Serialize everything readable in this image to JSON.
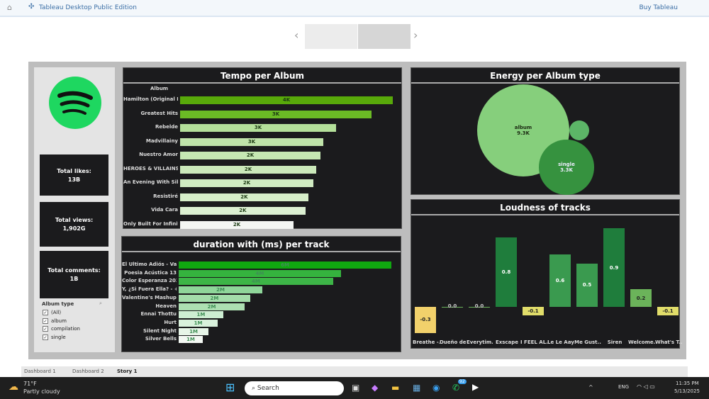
{
  "window": {
    "title": "Tableau Desktop Public Edition",
    "buy": "Buy Tableau"
  },
  "kpis": [
    {
      "label": "Total likes:",
      "value": "13B"
    },
    {
      "label": "Total views:",
      "value": "1,902G"
    },
    {
      "label": "Total comments:",
      "value": "1B"
    }
  ],
  "filter": {
    "title": "Album type",
    "options": [
      {
        "label": "(All)",
        "checked": true
      },
      {
        "label": "album",
        "checked": true
      },
      {
        "label": "compilation",
        "checked": true
      },
      {
        "label": "single",
        "checked": true
      }
    ]
  },
  "tabs": [
    "Dashboard 1",
    "Dashboard 2",
    "Story 1"
  ],
  "taskbar": {
    "weather_temp": "71°F",
    "weather_desc": "Partly cloudy",
    "search": "Search",
    "lang": "ENG",
    "time": "11:35 PM",
    "date": "5/13/2025",
    "badge": "92"
  },
  "colors": {
    "accent": "#1ed760",
    "panel": "#1b1b1d"
  },
  "chart_data": [
    {
      "type": "bar",
      "orientation": "horizontal",
      "title": "Tempo per Album",
      "ylabel": "Album",
      "categories": [
        "Hamilton (Original B..",
        "Greatest Hits",
        "Rebelde",
        "Madvillainy",
        "Nuestro Amor",
        "HEROES & VILLAINS",
        "An Evening With Silk..",
        "Resistiré",
        "Vida Cara",
        "Only Built For Infinit.."
      ],
      "values": [
        3750,
        3375,
        2750,
        2525,
        2475,
        2400,
        2350,
        2260,
        2210,
        2000
      ],
      "labels": [
        "4K",
        "3K",
        "3K",
        "3K",
        "2K",
        "2K",
        "2K",
        "2K",
        "2K",
        "2K"
      ]
    },
    {
      "type": "bar",
      "orientation": "horizontal",
      "title": "duration with (ms) per track",
      "categories": [
        "El Ultimo Adiós - Var..",
        "Poesia Acústica 13",
        "Color Esperanza 2020",
        "Y, ¿Si Fuera Ella? - + ..",
        "Valentine's Mashup ..",
        "Heaven",
        "Ennai Thottu",
        "Hurt",
        "Silent Night",
        "Silver Bells"
      ],
      "values": [
        5770000,
        4400000,
        4190000,
        2270000,
        1940000,
        1790000,
        1210000,
        1060000,
        810000,
        650000
      ],
      "labels": [
        "6M",
        "4M",
        "4M",
        "2M",
        "2M",
        "2M",
        "1M",
        "1M",
        "1M",
        "1M"
      ]
    },
    {
      "type": "bubble",
      "title": "Energy per Album type",
      "items": [
        {
          "name": "album",
          "value": 9300,
          "label": "9.3K",
          "color": "#86cf7c"
        },
        {
          "name": "",
          "value": 430,
          "label": "",
          "color": "#5cb567"
        },
        {
          "name": "single",
          "value": 3300,
          "label": "3.3K",
          "color": "#36923f"
        }
      ]
    },
    {
      "type": "bar",
      "title": "Loudness of tracks",
      "categories": [
        "Breathe -..",
        "Dueño de..",
        "Everytim..",
        "Exscape",
        "I FEEL AL..",
        "Le Le Aay..",
        "Me Gust..",
        "Siren",
        "Welcome..",
        "What's T.."
      ],
      "values": [
        -0.3,
        0.0,
        0.0,
        0.8,
        -0.1,
        0.6,
        0.5,
        0.9,
        0.2,
        -0.1
      ],
      "labels": [
        "-0.3",
        "0.0",
        "0.0",
        "0.8",
        "-0.1",
        "0.6",
        "0.5",
        "0.9",
        "0.2",
        "-0.1"
      ]
    }
  ]
}
